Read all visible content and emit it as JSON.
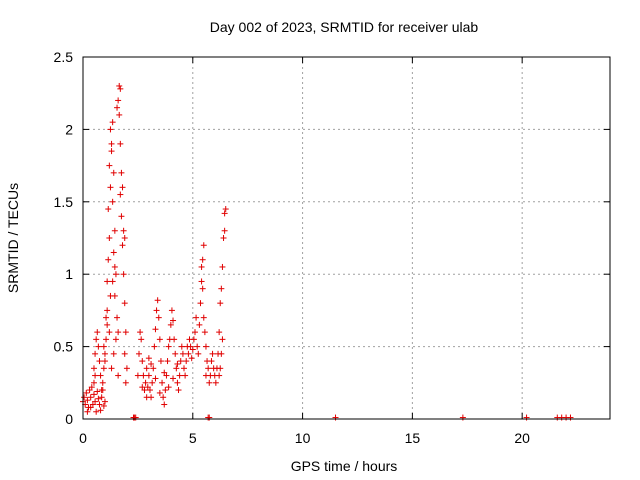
{
  "chart_data": {
    "type": "scatter",
    "title": "Day 002 of 2023, SRMTID for receiver ulab",
    "xlabel": "GPS time / hours",
    "ylabel": "SRMTID / TECUs",
    "xlim": [
      0,
      24
    ],
    "ylim": [
      0,
      2.5
    ],
    "x_ticks": [
      0,
      5,
      10,
      15,
      20
    ],
    "x_tick_labels": [
      "0",
      "5",
      "10",
      "15",
      "20"
    ],
    "y_ticks": [
      0,
      0.5,
      1,
      1.5,
      2,
      2.5
    ],
    "y_tick_labels": [
      "0",
      "0.5",
      "1",
      "1.5",
      "2",
      "2.5"
    ],
    "grid": true,
    "marker": "+",
    "color": "#e00000",
    "series": [
      {
        "name": "SRMTID",
        "points": [
          [
            0.0,
            0.12
          ],
          [
            0.05,
            0.15
          ],
          [
            0.1,
            0.1
          ],
          [
            0.15,
            0.18
          ],
          [
            0.2,
            0.13
          ],
          [
            0.25,
            0.08
          ],
          [
            0.3,
            0.2
          ],
          [
            0.35,
            0.15
          ],
          [
            0.4,
            0.22
          ],
          [
            0.45,
            0.1
          ],
          [
            0.5,
            0.17
          ],
          [
            0.55,
            0.12
          ],
          [
            0.6,
            0.05
          ],
          [
            0.65,
            0.19
          ],
          [
            0.7,
            0.14
          ],
          [
            0.75,
            0.1
          ],
          [
            0.8,
            0.06
          ],
          [
            0.85,
            0.15
          ],
          [
            0.9,
            0.2
          ],
          [
            0.95,
            0.09
          ],
          [
            1.0,
            0.12
          ],
          [
            0.2,
            0.05
          ],
          [
            0.35,
            0.08
          ],
          [
            0.5,
            0.25
          ],
          [
            0.55,
            0.3
          ],
          [
            0.5,
            0.35
          ],
          [
            0.55,
            0.45
          ],
          [
            0.6,
            0.55
          ],
          [
            0.65,
            0.6
          ],
          [
            0.7,
            0.5
          ],
          [
            0.75,
            0.4
          ],
          [
            0.8,
            0.3
          ],
          [
            0.85,
            0.2
          ],
          [
            0.9,
            0.25
          ],
          [
            0.95,
            0.35
          ],
          [
            1.0,
            0.45
          ],
          [
            1.05,
            0.55
          ],
          [
            1.1,
            0.65
          ],
          [
            1.05,
            0.7
          ],
          [
            1.1,
            0.75
          ],
          [
            1.0,
            0.4
          ],
          [
            0.95,
            0.5
          ],
          [
            1.1,
            0.95
          ],
          [
            1.15,
            1.1
          ],
          [
            1.2,
            1.25
          ],
          [
            1.15,
            1.45
          ],
          [
            1.25,
            1.6
          ],
          [
            1.2,
            1.75
          ],
          [
            1.3,
            1.85
          ],
          [
            1.25,
            2.0
          ],
          [
            1.35,
            2.05
          ],
          [
            1.3,
            1.9
          ],
          [
            1.4,
            1.7
          ],
          [
            1.35,
            1.5
          ],
          [
            1.45,
            1.3
          ],
          [
            1.4,
            1.15
          ],
          [
            1.5,
            1.0
          ],
          [
            1.45,
            0.85
          ],
          [
            1.55,
            0.7
          ],
          [
            1.5,
            0.55
          ],
          [
            1.6,
            0.6
          ],
          [
            1.55,
            2.15
          ],
          [
            1.6,
            2.2
          ],
          [
            1.65,
            2.3
          ],
          [
            1.7,
            2.28
          ],
          [
            1.65,
            2.1
          ],
          [
            1.7,
            1.9
          ],
          [
            1.75,
            1.7
          ],
          [
            1.7,
            1.55
          ],
          [
            1.8,
            1.6
          ],
          [
            1.75,
            1.4
          ],
          [
            1.85,
            1.3
          ],
          [
            1.8,
            1.2
          ],
          [
            1.9,
            1.25
          ],
          [
            1.85,
            1.0
          ],
          [
            1.9,
            0.8
          ],
          [
            1.95,
            0.6
          ],
          [
            1.9,
            0.45
          ],
          [
            2.0,
            0.35
          ],
          [
            1.95,
            0.25
          ],
          [
            1.6,
            0.3
          ],
          [
            1.4,
            0.45
          ],
          [
            1.3,
            0.35
          ],
          [
            1.2,
            0.6
          ],
          [
            1.25,
            0.85
          ],
          [
            1.35,
            0.95
          ],
          [
            1.45,
            1.05
          ],
          [
            2.3,
            0.01
          ],
          [
            2.35,
            0.01
          ],
          [
            2.4,
            0.01
          ],
          [
            2.5,
            0.3
          ],
          [
            2.55,
            0.45
          ],
          [
            2.6,
            0.6
          ],
          [
            2.65,
            0.55
          ],
          [
            2.7,
            0.4
          ],
          [
            2.75,
            0.3
          ],
          [
            2.8,
            0.2
          ],
          [
            2.85,
            0.25
          ],
          [
            2.9,
            0.15
          ],
          [
            2.95,
            0.22
          ],
          [
            3.0,
            0.3
          ],
          [
            3.05,
            0.2
          ],
          [
            3.1,
            0.15
          ],
          [
            3.15,
            0.25
          ],
          [
            3.2,
            0.35
          ],
          [
            3.25,
            0.5
          ],
          [
            3.3,
            0.62
          ],
          [
            3.35,
            0.75
          ],
          [
            3.4,
            0.82
          ],
          [
            3.45,
            0.7
          ],
          [
            3.5,
            0.55
          ],
          [
            3.55,
            0.4
          ],
          [
            3.6,
            0.25
          ],
          [
            3.65,
            0.15
          ],
          [
            3.7,
            0.1
          ],
          [
            3.75,
            0.2
          ],
          [
            3.8,
            0.3
          ],
          [
            3.85,
            0.4
          ],
          [
            3.9,
            0.5
          ],
          [
            3.95,
            0.55
          ],
          [
            4.0,
            0.65
          ],
          [
            4.05,
            0.75
          ],
          [
            4.1,
            0.68
          ],
          [
            4.15,
            0.55
          ],
          [
            4.2,
            0.45
          ],
          [
            4.25,
            0.35
          ],
          [
            4.3,
            0.25
          ],
          [
            4.35,
            0.2
          ],
          [
            4.4,
            0.3
          ],
          [
            4.45,
            0.4
          ],
          [
            4.5,
            0.5
          ],
          [
            4.55,
            0.45
          ],
          [
            4.6,
            0.35
          ],
          [
            4.65,
            0.3
          ],
          [
            4.7,
            0.4
          ],
          [
            4.75,
            0.5
          ],
          [
            4.8,
            0.45
          ],
          [
            4.85,
            0.55
          ],
          [
            4.9,
            0.5
          ],
          [
            4.95,
            0.42
          ],
          [
            5.0,
            0.48
          ],
          [
            5.05,
            0.55
          ],
          [
            5.1,
            0.6
          ],
          [
            5.15,
            0.7
          ],
          [
            5.2,
            0.5
          ],
          [
            5.25,
            0.45
          ],
          [
            3.0,
            0.42
          ],
          [
            3.1,
            0.38
          ],
          [
            3.3,
            0.28
          ],
          [
            3.5,
            0.18
          ],
          [
            3.7,
            0.32
          ],
          [
            3.9,
            0.22
          ],
          [
            4.1,
            0.28
          ],
          [
            4.3,
            0.38
          ],
          [
            2.7,
            0.22
          ],
          [
            2.9,
            0.35
          ],
          [
            5.3,
            0.65
          ],
          [
            5.35,
            0.8
          ],
          [
            5.4,
            0.95
          ],
          [
            5.45,
            1.1
          ],
          [
            5.5,
            1.2
          ],
          [
            5.4,
            1.05
          ],
          [
            5.45,
            0.9
          ],
          [
            5.5,
            0.7
          ],
          [
            5.55,
            0.6
          ],
          [
            5.6,
            0.5
          ],
          [
            5.65,
            0.4
          ],
          [
            5.7,
            0.35
          ],
          [
            5.6,
            0.3
          ],
          [
            5.75,
            0.25
          ],
          [
            5.8,
            0.3
          ],
          [
            5.85,
            0.4
          ],
          [
            5.9,
            0.45
          ],
          [
            5.95,
            0.35
          ],
          [
            6.0,
            0.3
          ],
          [
            6.05,
            0.25
          ],
          [
            6.1,
            0.35
          ],
          [
            6.15,
            0.45
          ],
          [
            6.2,
            0.6
          ],
          [
            6.25,
            0.8
          ],
          [
            6.3,
            0.9
          ],
          [
            6.35,
            1.05
          ],
          [
            6.4,
            1.25
          ],
          [
            6.45,
            1.42
          ],
          [
            6.5,
            1.45
          ],
          [
            6.45,
            1.3
          ],
          [
            6.35,
            0.55
          ],
          [
            6.3,
            0.45
          ],
          [
            6.2,
            0.3
          ],
          [
            6.25,
            0.35
          ],
          [
            5.7,
            0.01
          ],
          [
            5.75,
            0.01
          ],
          [
            11.5,
            0.01
          ],
          [
            17.3,
            0.01
          ],
          [
            20.2,
            0.01
          ],
          [
            21.6,
            0.01
          ],
          [
            21.8,
            0.01
          ],
          [
            22.0,
            0.01
          ],
          [
            22.2,
            0.01
          ]
        ]
      }
    ]
  }
}
